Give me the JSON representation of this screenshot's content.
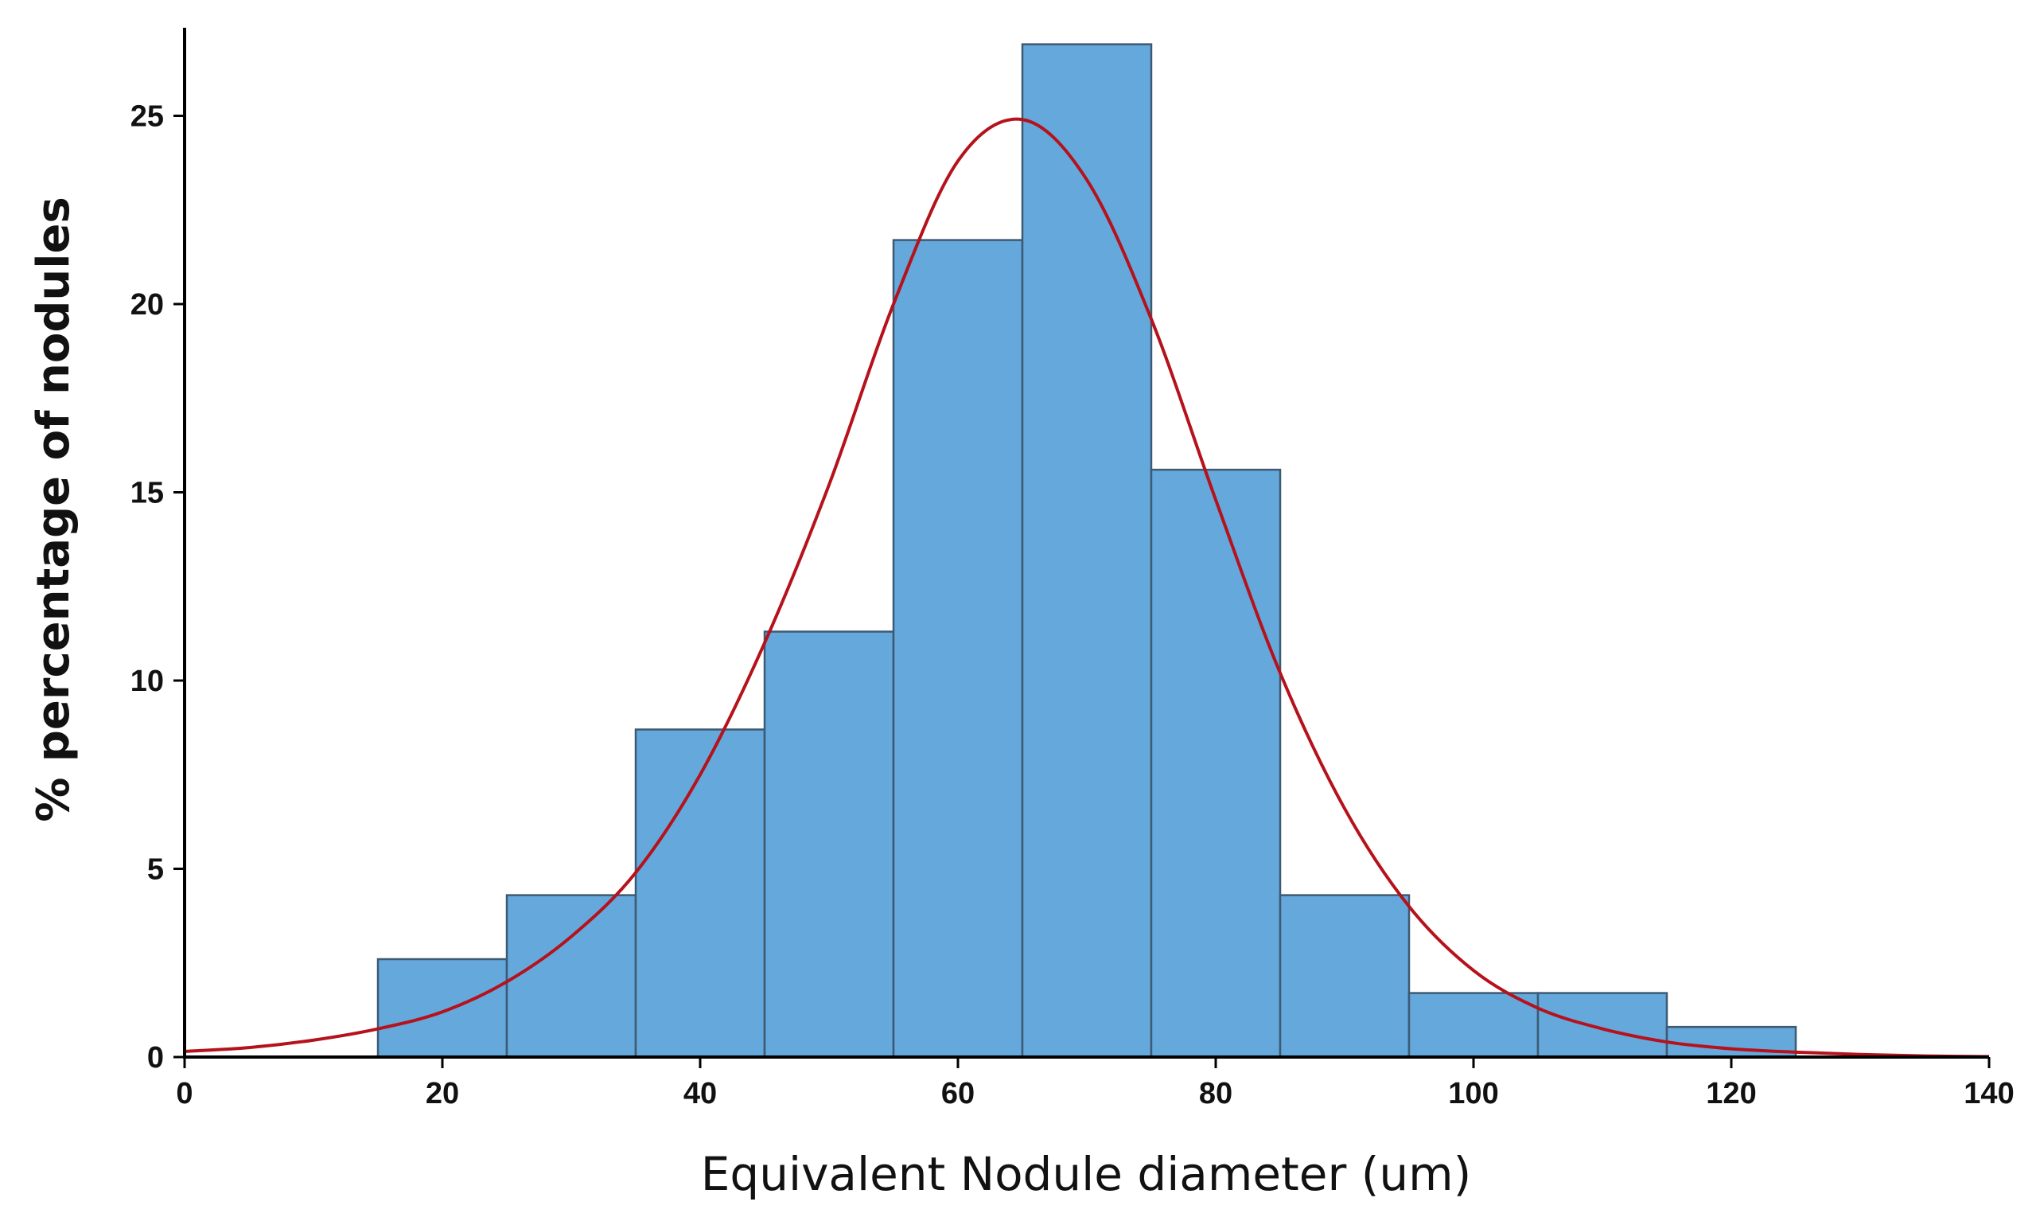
{
  "chart_data": {
    "type": "bar",
    "subtype": "histogram with fitted curve",
    "title": "",
    "xlabel": "Equivalent Nodule diameter (um)",
    "ylabel": "% percentage of nodules",
    "xlim": [
      0,
      140
    ],
    "ylim": [
      0,
      27
    ],
    "xticks": [
      0,
      20,
      40,
      60,
      80,
      100,
      120,
      140
    ],
    "yticks": [
      0,
      5,
      10,
      15,
      20,
      25
    ],
    "grid": false,
    "legend": "none",
    "bins": [
      {
        "x0": 15,
        "x1": 25,
        "value": 2.6
      },
      {
        "x0": 25,
        "x1": 35,
        "value": 4.3
      },
      {
        "x0": 35,
        "x1": 45,
        "value": 8.7
      },
      {
        "x0": 45,
        "x1": 55,
        "value": 11.3
      },
      {
        "x0": 55,
        "x1": 65,
        "value": 21.7
      },
      {
        "x0": 65,
        "x1": 75,
        "value": 26.9
      },
      {
        "x0": 75,
        "x1": 85,
        "value": 15.6
      },
      {
        "x0": 85,
        "x1": 95,
        "value": 4.3
      },
      {
        "x0": 95,
        "x1": 105,
        "value": 1.7
      },
      {
        "x0": 105,
        "x1": 115,
        "value": 1.7
      },
      {
        "x0": 115,
        "x1": 125,
        "value": 0.8
      }
    ],
    "curve": {
      "x": [
        0,
        5,
        10,
        15,
        20,
        25,
        30,
        35,
        40,
        45,
        50,
        55,
        60,
        65,
        70,
        75,
        80,
        85,
        90,
        95,
        100,
        105,
        110,
        115,
        120,
        125,
        130,
        135,
        140
      ],
      "y": [
        0.15,
        0.25,
        0.45,
        0.75,
        1.2,
        2.0,
        3.2,
        4.9,
        7.5,
        11.0,
        15.2,
        20.0,
        23.8,
        24.9,
        23.3,
        19.6,
        14.8,
        10.2,
        6.6,
        4.0,
        2.3,
        1.3,
        0.75,
        0.4,
        0.22,
        0.13,
        0.07,
        0.03,
        0.01
      ]
    },
    "colors": {
      "bar_fill": "#64a8dc",
      "bar_edge": "#3d5a73",
      "curve": "#b5121b",
      "axis": "#000000"
    }
  }
}
